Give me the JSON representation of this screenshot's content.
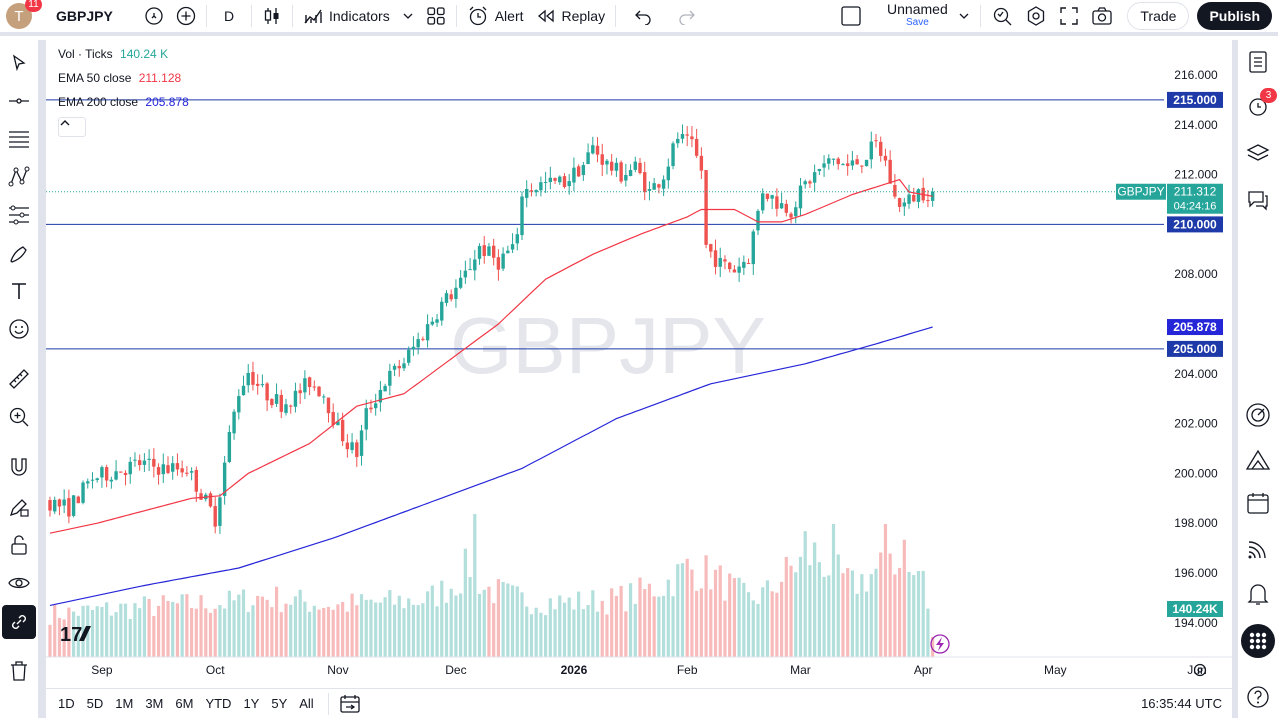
{
  "topbar": {
    "avatar_letter": "T",
    "notification_count": "11",
    "symbol": "GBPJPY",
    "interval": "D",
    "indicators_label": "Indicators",
    "alert_label": "Alert",
    "replay_label": "Replay",
    "layout_name": "Unnamed",
    "layout_save": "Save",
    "trade_label": "Trade",
    "publish_label": "Publish"
  },
  "legend": {
    "vol_label": "Vol · Ticks",
    "vol_value": "140.24 K",
    "ema50_label": "EMA 50 close",
    "ema50_value": "211.128",
    "ema200_label": "EMA 200 close",
    "ema200_value": "205.878"
  },
  "colors": {
    "up": "#26a69a",
    "down": "#ef5350",
    "ema50": "#f23645",
    "ema200": "#2626d9",
    "hline": "#1e3aa8",
    "vol_up": "#b2dfdb",
    "vol_down": "#f8bbbb"
  },
  "watermark": "GBPJPY",
  "chart_data": {
    "type": "candlestick",
    "y_ticks": [
      "216.000",
      "214.000",
      "212.000",
      "210.000",
      "208.000",
      "206.000",
      "204.000",
      "202.000",
      "200.000",
      "198.000",
      "196.000",
      "194.000"
    ],
    "y_tick_values": [
      216,
      214,
      212,
      210,
      208,
      206,
      204,
      202,
      200,
      198,
      196,
      194
    ],
    "x_labels": [
      "Sep",
      "Oct",
      "Nov",
      "Dec",
      "2026",
      "Feb",
      "Mar",
      "Apr",
      "May",
      "Jun"
    ],
    "x_bold": [
      false,
      false,
      false,
      false,
      true,
      false,
      false,
      false,
      false,
      false
    ],
    "x_label_index": [
      11,
      35,
      61,
      86,
      111,
      135,
      159,
      185,
      213,
      243
    ],
    "price_range": [
      193,
      217
    ],
    "horizontal_lines": [
      215.0,
      210.0,
      205.0
    ],
    "horizontal_line_labels": [
      "215.000",
      "210.000",
      "205.000"
    ],
    "ema200_label": "205.878",
    "ema50_label": "211.128",
    "last_price": "211.312",
    "countdown": "04:24:16",
    "symbol_tag": "GBPJPY",
    "volume_last": "140.24K",
    "keypoints": [
      [
        0,
        198.9
      ],
      [
        5,
        198.6
      ],
      [
        10,
        199.8
      ],
      [
        15,
        200.1
      ],
      [
        20,
        200.4
      ],
      [
        25,
        200.2
      ],
      [
        30,
        200.2
      ],
      [
        33,
        199.2
      ],
      [
        36,
        198.2
      ],
      [
        39,
        201.5
      ],
      [
        41,
        203.3
      ],
      [
        43,
        204.1
      ],
      [
        46,
        203.3
      ],
      [
        50,
        202.8
      ],
      [
        53,
        203.1
      ],
      [
        56,
        203.7
      ],
      [
        59,
        203.2
      ],
      [
        62,
        201.8
      ],
      [
        64,
        201.2
      ],
      [
        66,
        200.8
      ],
      [
        68,
        202.4
      ],
      [
        72,
        203.7
      ],
      [
        76,
        204.5
      ],
      [
        80,
        205.6
      ],
      [
        84,
        206.8
      ],
      [
        88,
        207.6
      ],
      [
        92,
        209.1
      ],
      [
        96,
        208.5
      ],
      [
        100,
        209.3
      ],
      [
        101,
        211.3
      ],
      [
        105,
        211.6
      ],
      [
        110,
        211.7
      ],
      [
        114,
        212.4
      ],
      [
        116,
        213.1
      ],
      [
        119,
        212.4
      ],
      [
        122,
        212.0
      ],
      [
        125,
        212.3
      ],
      [
        128,
        211.3
      ],
      [
        131,
        212.0
      ],
      [
        134,
        213.5
      ],
      [
        137,
        213.1
      ],
      [
        139,
        212.2
      ],
      [
        140,
        209.1
      ],
      [
        143,
        208.4
      ],
      [
        146,
        208.2
      ],
      [
        149,
        208.7
      ],
      [
        152,
        211.4
      ],
      [
        155,
        210.9
      ],
      [
        158,
        210.6
      ],
      [
        161,
        211.6
      ],
      [
        164,
        212.2
      ],
      [
        167,
        212.6
      ],
      [
        170,
        212.3
      ],
      [
        173,
        212.6
      ],
      [
        176,
        213.2
      ],
      [
        178,
        212.5
      ],
      [
        180,
        211.0
      ],
      [
        182,
        210.8
      ],
      [
        185,
        211.3
      ],
      [
        187,
        211.3
      ]
    ],
    "volume_keypoints": [
      [
        0,
        0.3
      ],
      [
        20,
        0.35
      ],
      [
        38,
        0.38
      ],
      [
        45,
        0.42
      ],
      [
        60,
        0.36
      ],
      [
        70,
        0.38
      ],
      [
        80,
        0.4
      ],
      [
        86,
        0.52
      ],
      [
        89,
        0.65
      ],
      [
        92,
        0.48
      ],
      [
        100,
        0.4
      ],
      [
        110,
        0.38
      ],
      [
        120,
        0.4
      ],
      [
        130,
        0.5
      ],
      [
        135,
        0.62
      ],
      [
        140,
        0.58
      ],
      [
        148,
        0.4
      ],
      [
        152,
        0.45
      ],
      [
        157,
        0.62
      ],
      [
        162,
        0.72
      ],
      [
        166,
        0.6
      ],
      [
        170,
        0.5
      ],
      [
        175,
        0.6
      ],
      [
        178,
        0.73
      ],
      [
        182,
        0.55
      ],
      [
        185,
        0.6
      ],
      [
        186,
        0.3
      ],
      [
        187,
        0.15
      ]
    ],
    "volume_spikes": [
      [
        90,
        1.0
      ],
      [
        177,
        0.93
      ],
      [
        166,
        0.93
      ],
      [
        181,
        0.82
      ],
      [
        160,
        0.88
      ]
    ],
    "ema50_keypoints": [
      [
        0,
        197.6
      ],
      [
        10,
        198.0
      ],
      [
        20,
        198.5
      ],
      [
        30,
        199.0
      ],
      [
        36,
        199.1
      ],
      [
        42,
        200.0
      ],
      [
        55,
        201.2
      ],
      [
        65,
        202.7
      ],
      [
        75,
        203.2
      ],
      [
        85,
        204.6
      ],
      [
        95,
        206.0
      ],
      [
        105,
        207.8
      ],
      [
        115,
        208.8
      ],
      [
        125,
        209.6
      ],
      [
        135,
        210.3
      ],
      [
        138,
        210.6
      ],
      [
        145,
        210.6
      ],
      [
        150,
        210.1
      ],
      [
        155,
        210.1
      ],
      [
        160,
        210.4
      ],
      [
        165,
        210.8
      ],
      [
        170,
        211.2
      ],
      [
        175,
        211.5
      ],
      [
        180,
        211.8
      ],
      [
        182,
        211.3
      ],
      [
        187,
        211.13
      ]
    ],
    "ema200_keypoints": [
      [
        0,
        194.7
      ],
      [
        20,
        195.5
      ],
      [
        40,
        196.2
      ],
      [
        60,
        197.4
      ],
      [
        80,
        198.8
      ],
      [
        100,
        200.2
      ],
      [
        120,
        202.2
      ],
      [
        140,
        203.6
      ],
      [
        160,
        204.4
      ],
      [
        175,
        205.2
      ],
      [
        187,
        205.88
      ]
    ]
  },
  "bottombar": {
    "ranges": [
      "1D",
      "5D",
      "1M",
      "3M",
      "6M",
      "YTD",
      "1Y",
      "5Y",
      "All"
    ],
    "time": "16:35:44 UTC"
  },
  "rightbar": {
    "alerts_count": "3"
  }
}
